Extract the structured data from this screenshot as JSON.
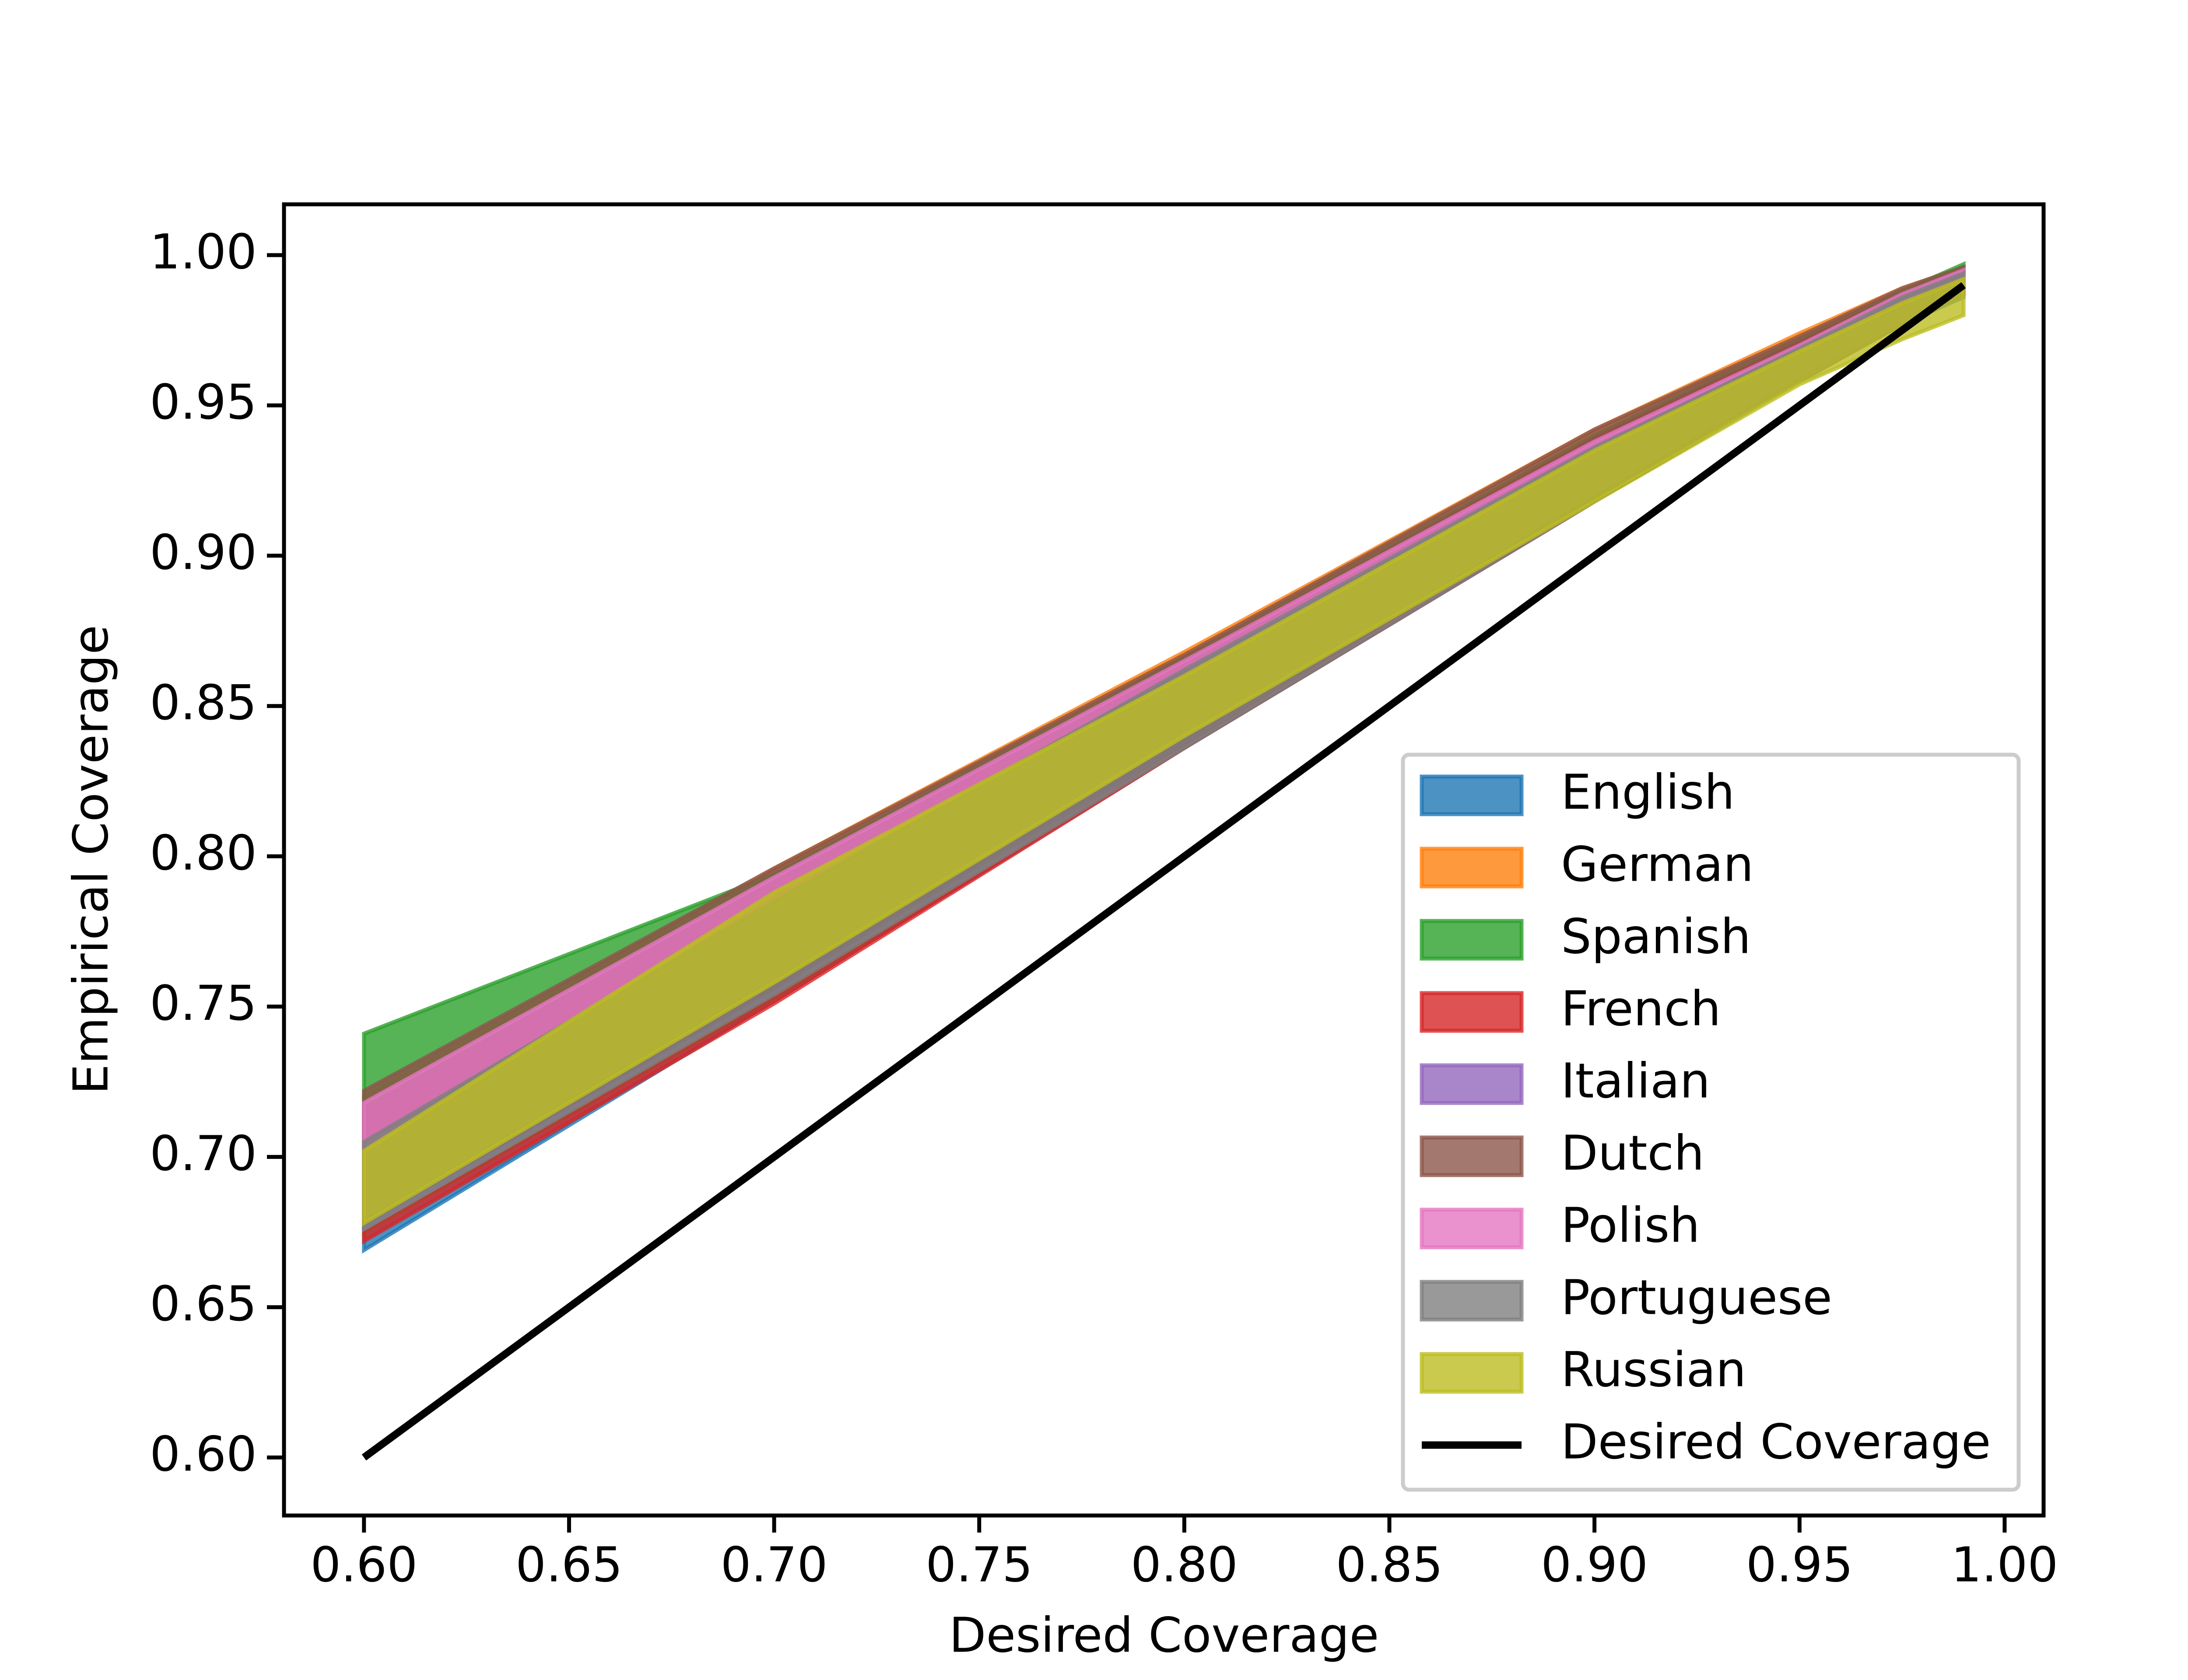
{
  "chart_data": {
    "type": "band",
    "xlabel": "Desired Coverage",
    "ylabel": "Empirical Coverage",
    "x": [
      0.6,
      0.7,
      0.8,
      0.9,
      0.95,
      0.975,
      0.99
    ],
    "series": [
      {
        "name": "English",
        "color": "#1f77b4",
        "lower": [
          0.669,
          0.752,
          0.836,
          0.918,
          0.958,
          0.977,
          0.986
        ],
        "upper": [
          0.72,
          0.795,
          0.866,
          0.94,
          0.972,
          0.988,
          0.996
        ]
      },
      {
        "name": "German",
        "color": "#ff7f0e",
        "lower": [
          0.675,
          0.755,
          0.838,
          0.92,
          0.96,
          0.978,
          0.987
        ],
        "upper": [
          0.72,
          0.796,
          0.868,
          0.942,
          0.974,
          0.989,
          0.996
        ]
      },
      {
        "name": "Spanish",
        "color": "#2ca02c",
        "lower": [
          0.675,
          0.753,
          0.837,
          0.919,
          0.959,
          0.978,
          0.988
        ],
        "upper": [
          0.741,
          0.794,
          0.866,
          0.94,
          0.972,
          0.988,
          0.997
        ]
      },
      {
        "name": "French",
        "color": "#d62728",
        "lower": [
          0.672,
          0.751,
          0.836,
          0.918,
          0.958,
          0.977,
          0.987
        ],
        "upper": [
          0.715,
          0.792,
          0.865,
          0.939,
          0.971,
          0.987,
          0.995
        ]
      },
      {
        "name": "Italian",
        "color": "#9467bd",
        "lower": [
          0.676,
          0.755,
          0.838,
          0.92,
          0.96,
          0.978,
          0.988
        ],
        "upper": [
          0.715,
          0.792,
          0.864,
          0.938,
          0.97,
          0.987,
          0.995
        ]
      },
      {
        "name": "Dutch",
        "color": "#8c564b",
        "lower": [
          0.678,
          0.756,
          0.838,
          0.92,
          0.96,
          0.978,
          0.988
        ],
        "upper": [
          0.722,
          0.796,
          0.867,
          0.942,
          0.973,
          0.989,
          0.996
        ]
      },
      {
        "name": "Polish",
        "color": "#e377c2",
        "lower": [
          0.68,
          0.76,
          0.84,
          0.921,
          0.96,
          0.978,
          0.988
        ],
        "upper": [
          0.718,
          0.793,
          0.865,
          0.938,
          0.97,
          0.987,
          0.995
        ]
      },
      {
        "name": "Portuguese",
        "color": "#7f7f7f",
        "lower": [
          0.676,
          0.754,
          0.836,
          0.918,
          0.958,
          0.977,
          0.987
        ],
        "upper": [
          0.705,
          0.785,
          0.862,
          0.936,
          0.969,
          0.986,
          0.994
        ]
      },
      {
        "name": "Russian",
        "color": "#bcbd22",
        "lower": [
          0.678,
          0.758,
          0.84,
          0.918,
          0.957,
          0.972,
          0.98
        ],
        "upper": [
          0.702,
          0.788,
          0.86,
          0.935,
          0.968,
          0.984,
          0.992
        ]
      }
    ],
    "line": {
      "name": "Desired Coverage",
      "color": "#000000",
      "x": [
        0.6,
        0.99
      ],
      "values": [
        0.6,
        0.99
      ]
    },
    "fill_opacity": 0.8,
    "xlim": [
      0.5805,
      1.0095
    ],
    "ylim": [
      0.5807,
      1.0169
    ],
    "xticks": [
      {
        "value": 0.6,
        "label": "0.60"
      },
      {
        "value": 0.65,
        "label": "0.65"
      },
      {
        "value": 0.7,
        "label": "0.70"
      },
      {
        "value": 0.75,
        "label": "0.75"
      },
      {
        "value": 0.8,
        "label": "0.80"
      },
      {
        "value": 0.85,
        "label": "0.85"
      },
      {
        "value": 0.9,
        "label": "0.90"
      },
      {
        "value": 0.95,
        "label": "0.95"
      },
      {
        "value": 1.0,
        "label": "1.00"
      }
    ],
    "yticks": [
      {
        "value": 0.6,
        "label": "0.60"
      },
      {
        "value": 0.65,
        "label": "0.65"
      },
      {
        "value": 0.7,
        "label": "0.70"
      },
      {
        "value": 0.75,
        "label": "0.75"
      },
      {
        "value": 0.8,
        "label": "0.80"
      },
      {
        "value": 0.85,
        "label": "0.85"
      },
      {
        "value": 0.9,
        "label": "0.90"
      },
      {
        "value": 0.95,
        "label": "0.95"
      },
      {
        "value": 1.0,
        "label": "1.00"
      }
    ],
    "grid": false,
    "legend": "lower right"
  }
}
